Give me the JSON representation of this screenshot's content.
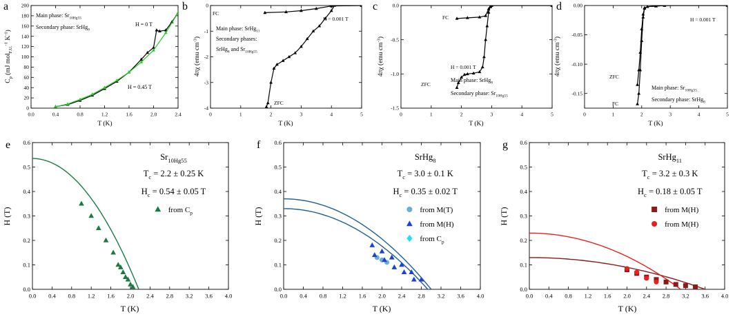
{
  "chart_data": [
    {
      "id": "a",
      "letter": "a",
      "type": "line",
      "xlabel": "T (K)",
      "ylabel": "C_p (mJ mol_F.U.^-1 K^-1)",
      "xlim": [
        0,
        2.4
      ],
      "ylim": [
        0,
        200
      ],
      "xticks": [
        "0.0",
        "0.4",
        "0.8",
        "1.2",
        "1.6",
        "2.0",
        "2.4"
      ],
      "yticks": [
        "0",
        "20",
        "40",
        "60",
        "80",
        "100",
        "120",
        "140",
        "160",
        "180",
        "200"
      ],
      "annotations": [
        {
          "text": "Main phase: Sr10Hg55"
        },
        {
          "text": "Secondary phase: SrHg8"
        },
        {
          "text": "H = 0 T"
        },
        {
          "text": "H = 0.45 T"
        }
      ],
      "series": [
        {
          "name": "H = 0 T",
          "color": "#000000",
          "x": [
            0.4,
            0.6,
            0.8,
            1.0,
            1.2,
            1.4,
            1.6,
            1.8,
            1.9,
            2.0,
            2.05,
            2.1,
            2.2,
            2.3,
            2.4
          ],
          "y": [
            3,
            7,
            15,
            25,
            38,
            52,
            70,
            95,
            108,
            118,
            152,
            150,
            152,
            168,
            186
          ]
        },
        {
          "name": "H = 0.45 T",
          "color": "#22cc22",
          "x": [
            0.4,
            0.6,
            0.8,
            1.0,
            1.2,
            1.4,
            1.6,
            1.8,
            2.0,
            2.2,
            2.4
          ],
          "y": [
            3,
            8,
            17,
            27,
            40,
            54,
            70,
            90,
            113,
            147,
            186
          ]
        }
      ]
    },
    {
      "id": "b",
      "letter": "b",
      "type": "line",
      "xlabel": "T (K)",
      "ylabel": "4πχ (emu cm^-3)",
      "xlim": [
        0,
        5
      ],
      "ylim": [
        -4,
        0
      ],
      "xticks": [
        "0",
        "1",
        "2",
        "3",
        "4",
        "5"
      ],
      "yticks": [
        "0",
        "-1",
        "-2",
        "-3",
        "-4"
      ],
      "annotations": [
        {
          "text": "FC"
        },
        {
          "text": "ZFC"
        },
        {
          "text": "H = 0.001 T"
        },
        {
          "text": "Main phase: SrHg11"
        },
        {
          "text": "Secondary phases:"
        },
        {
          "text": "SrHg8 and Sr10Hg55"
        }
      ],
      "series": [
        {
          "name": "FC",
          "color": "#000000",
          "x": [
            1.8,
            2.5,
            3.0,
            3.5,
            4.0,
            5.0
          ],
          "y": [
            -0.28,
            -0.25,
            -0.2,
            -0.12,
            -0.02,
            0.0
          ]
        },
        {
          "name": "ZFC",
          "color": "#000000",
          "x": [
            1.85,
            1.9,
            2.0,
            2.1,
            2.2,
            2.4,
            2.6,
            2.8,
            3.0,
            3.2,
            3.4,
            3.6,
            3.8,
            4.0,
            4.1,
            5.0
          ],
          "y": [
            -3.95,
            -3.8,
            -3.0,
            -2.45,
            -2.3,
            -2.15,
            -2.0,
            -1.85,
            -1.6,
            -1.3,
            -1.0,
            -0.8,
            -0.5,
            -0.2,
            0.0,
            0.0
          ]
        }
      ]
    },
    {
      "id": "c",
      "letter": "c",
      "type": "line",
      "xlabel": "T (K)",
      "ylabel": "4πχ (emu cm^-3)",
      "xlim": [
        0,
        5
      ],
      "ylim": [
        -1.5,
        0
      ],
      "xticks": [
        "0",
        "1",
        "2",
        "3",
        "4",
        "5"
      ],
      "yticks": [
        "0.0",
        "-0.5",
        "-1.0",
        "-1.5"
      ],
      "annotations": [
        {
          "text": "FC"
        },
        {
          "text": "ZFC"
        },
        {
          "text": "H = 0.001 T"
        },
        {
          "text": "Main phase: SrHg8"
        },
        {
          "text": "Secondary phase: Sr10Hg55"
        }
      ],
      "series": [
        {
          "name": "FC",
          "color": "#000000",
          "x": [
            1.85,
            2.2,
            2.6,
            2.8,
            2.9,
            3.0,
            5.0
          ],
          "y": [
            -0.19,
            -0.18,
            -0.17,
            -0.15,
            -0.05,
            0.0,
            0.0
          ]
        },
        {
          "name": "ZFC",
          "color": "#000000",
          "x": [
            1.85,
            1.9,
            2.0,
            2.1,
            2.2,
            2.4,
            2.6,
            2.7,
            2.75,
            2.8,
            2.85,
            2.9,
            2.95,
            3.0,
            5.0
          ],
          "y": [
            -1.2,
            -1.13,
            -1.05,
            -1.01,
            -1.0,
            -0.99,
            -0.97,
            -0.9,
            -0.75,
            -0.5,
            -0.3,
            -0.1,
            -0.02,
            0.0,
            0.0
          ]
        }
      ]
    },
    {
      "id": "d",
      "letter": "d",
      "type": "line",
      "xlabel": "T (K)",
      "ylabel": "4πχ (emu cm^-3)",
      "xlim": [
        0,
        5
      ],
      "ylim": [
        -0.175,
        0
      ],
      "xticks": [
        "0",
        "1",
        "2",
        "3",
        "4",
        "5"
      ],
      "yticks": [
        "0.00",
        "-0.05",
        "-0.10",
        "-0.15"
      ],
      "annotations": [
        {
          "text": "ZFC"
        },
        {
          "text": "FC"
        },
        {
          "text": "H = 0.001 T"
        },
        {
          "text": "Main phase: Sr10Hg55"
        },
        {
          "text": "Secondary phase: SrHg8"
        }
      ],
      "series": [
        {
          "name": "FC",
          "color": "#000000",
          "x": [
            1.85,
            1.9,
            1.95,
            2.0,
            2.05,
            2.1,
            2.2,
            2.5,
            2.8,
            5.0
          ],
          "y": [
            -0.168,
            -0.15,
            -0.11,
            -0.06,
            -0.02,
            -0.005,
            -0.002,
            -0.001,
            0.0,
            0.0
          ]
        },
        {
          "name": "ZFC",
          "color": "#000000",
          "x": [
            1.85,
            1.9,
            1.95,
            2.0,
            2.05,
            2.1,
            2.2,
            2.5,
            2.8,
            5.0
          ],
          "y": [
            -0.135,
            -0.11,
            -0.08,
            -0.04,
            -0.015,
            -0.004,
            -0.002,
            -0.001,
            0.0,
            0.0
          ]
        }
      ]
    },
    {
      "id": "e",
      "letter": "e",
      "type": "scatter",
      "xlabel": "T (K)",
      "ylabel": "H (T)",
      "xlim": [
        0,
        4
      ],
      "ylim": [
        0,
        0.6
      ],
      "xticks": [
        "0.0",
        "0.4",
        "0.8",
        "1.2",
        "1.6",
        "2.0",
        "2.4",
        "2.8",
        "3.2",
        "3.6",
        "4.0"
      ],
      "yticks": [
        "0.0",
        "0.1",
        "0.2",
        "0.3",
        "0.4",
        "0.5",
        "0.6"
      ],
      "compound": "Sr10Hg55",
      "tc": "T_c = 2.2 ± 0.25 K",
      "hc": "H_c = 0.54 ± 0.05 T",
      "fits": [
        {
          "color": "#1a7a44",
          "h0": 0.535,
          "tc": 2.17
        }
      ],
      "series": [
        {
          "name": "from C_p",
          "marker": "triangle",
          "color": "#1a7a44",
          "x": [
            1.0,
            1.2,
            1.35,
            1.5,
            1.65,
            1.75,
            1.8,
            1.85,
            1.9,
            1.95,
            2.0,
            2.05
          ],
          "y": [
            0.35,
            0.3,
            0.25,
            0.2,
            0.15,
            0.1,
            0.09,
            0.07,
            0.05,
            0.04,
            0.02,
            0.01
          ]
        }
      ]
    },
    {
      "id": "f",
      "letter": "f",
      "type": "scatter",
      "xlabel": "T (K)",
      "ylabel": "H (T)",
      "xlim": [
        0,
        4
      ],
      "ylim": [
        0,
        0.6
      ],
      "xticks": [
        "0.0",
        "0.4",
        "0.8",
        "1.2",
        "1.6",
        "2.0",
        "2.4",
        "2.8",
        "3.2",
        "3.6",
        "4.0"
      ],
      "yticks": [
        "0.0",
        "0.1",
        "0.2",
        "0.3",
        "0.4",
        "0.5",
        "0.6"
      ],
      "compound": "SrHg8",
      "tc": "T_c = 3.0 ± 0.1 K",
      "hc": "H_c = 0.35 ± 0.02 T",
      "fits": [
        {
          "color": "#1f5f95",
          "h0": 0.37,
          "tc": 3.0
        },
        {
          "color": "#1f5f95",
          "h0": 0.33,
          "tc": 2.93
        }
      ],
      "series": [
        {
          "name": "from M(T)",
          "marker": "circle",
          "color": "#6baed6",
          "x": [
            1.9,
            2.0,
            2.1
          ],
          "y": [
            0.13,
            0.12,
            0.11
          ]
        },
        {
          "name": "from M(H)",
          "marker": "triangle",
          "color": "#1f3fd6",
          "x": [
            1.8,
            2.0,
            2.2,
            2.4,
            2.6,
            2.8,
            1.85,
            2.05,
            2.25,
            2.45,
            2.65
          ],
          "y": [
            0.18,
            0.155,
            0.13,
            0.1,
            0.07,
            0.04,
            0.14,
            0.12,
            0.09,
            0.07,
            0.04
          ]
        },
        {
          "name": "from C_p",
          "marker": "diamond",
          "color": "#22e0e8",
          "x": [],
          "y": []
        }
      ]
    },
    {
      "id": "g",
      "letter": "g",
      "type": "scatter",
      "xlabel": "T (K)",
      "ylabel": "H (T)",
      "xlim": [
        0,
        4
      ],
      "ylim": [
        0,
        0.6
      ],
      "xticks": [
        "0.0",
        "0.4",
        "0.8",
        "1.2",
        "1.6",
        "2.0",
        "2.4",
        "2.8",
        "3.2",
        "3.6",
        "4.0"
      ],
      "yticks": [
        "0.0",
        "0.1",
        "0.2",
        "0.3",
        "0.4",
        "0.5",
        "0.6"
      ],
      "compound": "SrHg11",
      "tc": "T_c = 3.2 ± 0.3 K",
      "hc": "H_c = 0.18 ± 0.05 T",
      "fits": [
        {
          "color": "#8b1a1a",
          "h0": 0.13,
          "tc": 3.6
        },
        {
          "color": "#e82020",
          "h0": 0.23,
          "tc": 3.1
        }
      ],
      "series": [
        {
          "name": "from M(H)",
          "marker": "square",
          "color": "#8b1a1a",
          "x": [
            2.0,
            2.2,
            2.4,
            2.6,
            2.8,
            3.0,
            3.2,
            3.4
          ],
          "y": [
            0.08,
            0.065,
            0.05,
            0.04,
            0.03,
            0.02,
            0.015,
            0.01
          ]
        },
        {
          "name": "from M(H)",
          "marker": "circle",
          "color": "#e82020",
          "x": [
            2.0,
            2.2,
            2.4,
            2.6
          ],
          "y": [
            0.085,
            0.07,
            0.045,
            0.03
          ]
        }
      ]
    }
  ]
}
